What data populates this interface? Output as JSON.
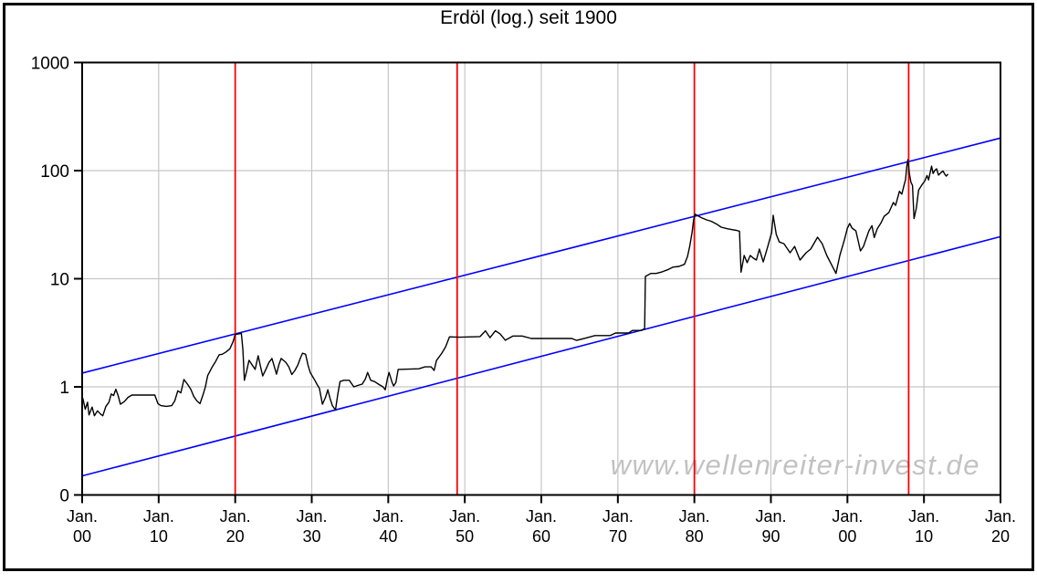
{
  "title": "Erdöl (log.) seit 1900",
  "watermark": "www.wellenreiter-invest.de",
  "colors": {
    "price": "#000000",
    "channel": "#0000ff",
    "cycle": "#ff0000",
    "grid": "#c6c6c6",
    "axis": "#000000",
    "background": "#ffffff",
    "watermark": "#c2c2c2"
  },
  "chart_data": {
    "type": "line",
    "title": "Erdöl (log.) seit 1900",
    "xlabel": "",
    "ylabel": "",
    "grid": true,
    "legend": "none",
    "y_axis": {
      "scale": "log",
      "min": 0.1,
      "max": 1000,
      "ticks": [
        {
          "label": "0",
          "value": 0.1
        },
        {
          "label": "1",
          "value": 1
        },
        {
          "label": "10",
          "value": 10
        },
        {
          "label": "100",
          "value": 100
        },
        {
          "label": "1000",
          "value": 1000
        }
      ]
    },
    "x_axis": {
      "start_year": 1900,
      "end_year": 2020,
      "ticks": [
        {
          "month": "Jan.",
          "year_label": "00",
          "year": 1900
        },
        {
          "month": "Jan.",
          "year_label": "10",
          "year": 1910
        },
        {
          "month": "Jan.",
          "year_label": "20",
          "year": 1920
        },
        {
          "month": "Jan.",
          "year_label": "30",
          "year": 1930
        },
        {
          "month": "Jan.",
          "year_label": "40",
          "year": 1940
        },
        {
          "month": "Jan.",
          "year_label": "50",
          "year": 1950
        },
        {
          "month": "Jan.",
          "year_label": "60",
          "year": 1960
        },
        {
          "month": "Jan.",
          "year_label": "70",
          "year": 1970
        },
        {
          "month": "Jan.",
          "year_label": "80",
          "year": 1980
        },
        {
          "month": "Jan.",
          "year_label": "90",
          "year": 1990
        },
        {
          "month": "Jan.",
          "year_label": "00",
          "year": 2000
        },
        {
          "month": "Jan.",
          "year_label": "10",
          "year": 2010
        },
        {
          "month": "Jan.",
          "year_label": "20",
          "year": 2020
        }
      ]
    },
    "cycle_lines": {
      "color": "#ff0000",
      "years": [
        1920,
        1949,
        1980,
        2008
      ]
    },
    "trend_channel": {
      "color": "#0000ff",
      "upper": {
        "points": [
          [
            1900,
            1.34
          ],
          [
            2020,
            200
          ]
        ]
      },
      "lower": {
        "points": [
          [
            1900,
            0.15
          ],
          [
            2020,
            24.5
          ]
        ]
      }
    },
    "series": [
      {
        "name": "Erdöl",
        "color": "#000000",
        "points": [
          [
            1900.1,
            0.78
          ],
          [
            1900.4,
            0.62
          ],
          [
            1900.7,
            0.72
          ],
          [
            1900.9,
            0.55
          ],
          [
            1901.3,
            0.65
          ],
          [
            1901.6,
            0.54
          ],
          [
            1902.0,
            0.6
          ],
          [
            1902.4,
            0.56
          ],
          [
            1902.7,
            0.54
          ],
          [
            1903.1,
            0.66
          ],
          [
            1903.5,
            0.72
          ],
          [
            1903.8,
            0.86
          ],
          [
            1904.1,
            0.83
          ],
          [
            1904.4,
            0.95
          ],
          [
            1904.7,
            0.83
          ],
          [
            1905.0,
            0.69
          ],
          [
            1905.5,
            0.73
          ],
          [
            1906.0,
            0.8
          ],
          [
            1906.5,
            0.84
          ],
          [
            1909.5,
            0.84
          ],
          [
            1909.9,
            0.7
          ],
          [
            1910.3,
            0.67
          ],
          [
            1911.0,
            0.66
          ],
          [
            1911.7,
            0.67
          ],
          [
            1912.1,
            0.74
          ],
          [
            1912.5,
            0.92
          ],
          [
            1912.9,
            0.88
          ],
          [
            1913.3,
            1.17
          ],
          [
            1913.8,
            1.05
          ],
          [
            1914.2,
            0.95
          ],
          [
            1914.6,
            0.81
          ],
          [
            1915.0,
            0.74
          ],
          [
            1915.4,
            0.7
          ],
          [
            1915.8,
            0.85
          ],
          [
            1916.1,
            1.0
          ],
          [
            1916.4,
            1.27
          ],
          [
            1917.0,
            1.53
          ],
          [
            1917.4,
            1.7
          ],
          [
            1917.9,
            1.98
          ],
          [
            1918.3,
            2.0
          ],
          [
            1918.8,
            2.1
          ],
          [
            1919.3,
            2.25
          ],
          [
            1919.7,
            2.6
          ],
          [
            1920.0,
            3.05
          ],
          [
            1920.8,
            3.12
          ],
          [
            1921.0,
            2.2
          ],
          [
            1921.2,
            1.15
          ],
          [
            1921.5,
            1.4
          ],
          [
            1921.8,
            1.76
          ],
          [
            1922.2,
            1.6
          ],
          [
            1922.6,
            1.45
          ],
          [
            1923.0,
            1.94
          ],
          [
            1923.3,
            1.55
          ],
          [
            1923.6,
            1.26
          ],
          [
            1924.0,
            1.45
          ],
          [
            1924.4,
            1.68
          ],
          [
            1924.8,
            1.83
          ],
          [
            1925.1,
            1.55
          ],
          [
            1925.4,
            1.31
          ],
          [
            1925.7,
            1.6
          ],
          [
            1926.0,
            1.83
          ],
          [
            1926.6,
            1.69
          ],
          [
            1927.0,
            1.53
          ],
          [
            1927.4,
            1.3
          ],
          [
            1927.8,
            1.42
          ],
          [
            1928.2,
            1.6
          ],
          [
            1928.5,
            1.83
          ],
          [
            1928.8,
            2.05
          ],
          [
            1929.2,
            2.0
          ],
          [
            1929.5,
            1.6
          ],
          [
            1929.8,
            1.36
          ],
          [
            1930.1,
            1.25
          ],
          [
            1930.4,
            1.15
          ],
          [
            1930.7,
            1.05
          ],
          [
            1931.0,
            0.97
          ],
          [
            1931.4,
            0.69
          ],
          [
            1931.8,
            0.8
          ],
          [
            1932.1,
            0.94
          ],
          [
            1932.4,
            0.78
          ],
          [
            1932.7,
            0.67
          ],
          [
            1933.1,
            0.61
          ],
          [
            1933.4,
            0.85
          ],
          [
            1933.7,
            1.12
          ],
          [
            1934.2,
            1.15
          ],
          [
            1934.9,
            1.15
          ],
          [
            1935.5,
            1.0
          ],
          [
            1936.0,
            1.03
          ],
          [
            1936.6,
            1.06
          ],
          [
            1937.0,
            1.18
          ],
          [
            1937.3,
            1.36
          ],
          [
            1937.7,
            1.15
          ],
          [
            1938.2,
            1.12
          ],
          [
            1938.8,
            1.05
          ],
          [
            1939.3,
            1.0
          ],
          [
            1939.6,
            0.94
          ],
          [
            1939.9,
            1.2
          ],
          [
            1940.1,
            1.36
          ],
          [
            1940.5,
            1.1
          ],
          [
            1940.7,
            1.02
          ],
          [
            1941.0,
            1.1
          ],
          [
            1941.3,
            1.45
          ],
          [
            1944.0,
            1.47
          ],
          [
            1944.8,
            1.53
          ],
          [
            1945.6,
            1.53
          ],
          [
            1946.0,
            1.42
          ],
          [
            1946.3,
            1.75
          ],
          [
            1947.0,
            2.05
          ],
          [
            1947.5,
            2.35
          ],
          [
            1948.0,
            2.9
          ],
          [
            1949.2,
            2.88
          ],
          [
            1951.0,
            2.9
          ],
          [
            1952.0,
            2.92
          ],
          [
            1952.7,
            3.3
          ],
          [
            1953.3,
            2.85
          ],
          [
            1954.0,
            3.3
          ],
          [
            1954.6,
            3.1
          ],
          [
            1955.3,
            2.7
          ],
          [
            1956.3,
            2.95
          ],
          [
            1957.5,
            2.95
          ],
          [
            1958.7,
            2.8
          ],
          [
            1964.0,
            2.8
          ],
          [
            1964.6,
            2.69
          ],
          [
            1965.8,
            2.82
          ],
          [
            1967.0,
            2.98
          ],
          [
            1969.0,
            2.98
          ],
          [
            1969.7,
            3.15
          ],
          [
            1971.4,
            3.15
          ],
          [
            1971.9,
            3.32
          ],
          [
            1973.1,
            3.32
          ],
          [
            1973.5,
            3.47
          ],
          [
            1973.6,
            10.5
          ],
          [
            1974.3,
            11.2
          ],
          [
            1975.0,
            11.2
          ],
          [
            1975.8,
            11.6
          ],
          [
            1976.5,
            12.1
          ],
          [
            1977.2,
            12.8
          ],
          [
            1978.0,
            13.0
          ],
          [
            1978.7,
            13.6
          ],
          [
            1979.1,
            16.0
          ],
          [
            1979.4,
            20.0
          ],
          [
            1979.7,
            27.0
          ],
          [
            1979.9,
            35.0
          ],
          [
            1980.1,
            39.5
          ],
          [
            1980.5,
            38.0
          ],
          [
            1981.0,
            36.5
          ],
          [
            1981.6,
            35.0
          ],
          [
            1982.2,
            34.0
          ],
          [
            1982.9,
            32.0
          ],
          [
            1983.5,
            30.0
          ],
          [
            1984.3,
            29.0
          ],
          [
            1985.0,
            28.4
          ],
          [
            1985.5,
            28.0
          ],
          [
            1985.9,
            27.5
          ],
          [
            1986.1,
            11.5
          ],
          [
            1986.5,
            16.4
          ],
          [
            1986.9,
            14.1
          ],
          [
            1987.3,
            16.4
          ],
          [
            1987.7,
            15.5
          ],
          [
            1988.1,
            14.9
          ],
          [
            1988.5,
            18.8
          ],
          [
            1989.0,
            14.3
          ],
          [
            1989.6,
            19.9
          ],
          [
            1990.1,
            26.7
          ],
          [
            1990.3,
            38.6
          ],
          [
            1990.7,
            25.6
          ],
          [
            1991.1,
            21.9
          ],
          [
            1991.7,
            21.1
          ],
          [
            1992.5,
            17.4
          ],
          [
            1993.1,
            19.9
          ],
          [
            1993.8,
            14.9
          ],
          [
            1994.6,
            17.4
          ],
          [
            1995.2,
            18.8
          ],
          [
            1996.1,
            24.2
          ],
          [
            1996.7,
            21.1
          ],
          [
            1997.3,
            16.4
          ],
          [
            1997.9,
            13.6
          ],
          [
            1998.5,
            11.2
          ],
          [
            1999.0,
            16.4
          ],
          [
            1999.6,
            22.9
          ],
          [
            2000.0,
            29.4
          ],
          [
            2000.3,
            32.4
          ],
          [
            2000.6,
            29.4
          ],
          [
            2001.1,
            27.7
          ],
          [
            2001.7,
            18.1
          ],
          [
            2002.1,
            19.9
          ],
          [
            2002.8,
            27.7
          ],
          [
            2003.2,
            31.0
          ],
          [
            2003.5,
            24.0
          ],
          [
            2003.9,
            29.0
          ],
          [
            2004.4,
            33.0
          ],
          [
            2004.8,
            37.8
          ],
          [
            2005.4,
            40.8
          ],
          [
            2006.0,
            50.7
          ],
          [
            2006.3,
            47.7
          ],
          [
            2006.8,
            64.3
          ],
          [
            2007.1,
            60.6
          ],
          [
            2007.4,
            73.6
          ],
          [
            2007.6,
            82.5
          ],
          [
            2007.75,
            108.0
          ],
          [
            2007.9,
            126.6
          ],
          [
            2008.1,
            94.0
          ],
          [
            2008.3,
            78.0
          ],
          [
            2008.5,
            73.0
          ],
          [
            2008.7,
            36.0
          ],
          [
            2009.0,
            45.0
          ],
          [
            2009.3,
            66.0
          ],
          [
            2009.8,
            75.0
          ],
          [
            2010.1,
            80.0
          ],
          [
            2010.4,
            90.0
          ],
          [
            2010.6,
            82.0
          ],
          [
            2011.0,
            110.0
          ],
          [
            2011.2,
            94.0
          ],
          [
            2011.4,
            100.0
          ],
          [
            2011.65,
            104.0
          ],
          [
            2011.9,
            91.0
          ],
          [
            2012.3,
            97.0
          ],
          [
            2012.5,
            99.0
          ],
          [
            2012.7,
            93.0
          ],
          [
            2012.9,
            89.0
          ],
          [
            2013.1,
            92.0
          ]
        ]
      }
    ]
  }
}
